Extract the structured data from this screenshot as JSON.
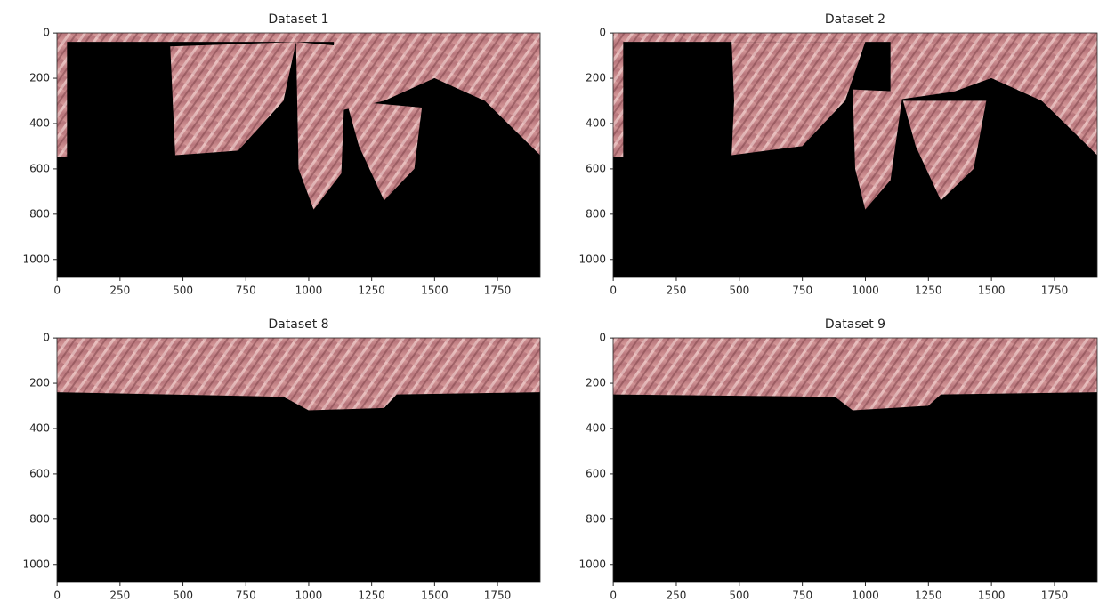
{
  "chart_data": [
    {
      "type": "image",
      "title": "Dataset 1",
      "xlim": [
        -0.5,
        1919.5
      ],
      "ylim": [
        1079.5,
        -0.5
      ],
      "xticks": [
        0,
        250,
        500,
        750,
        1000,
        1250,
        1500,
        1750
      ],
      "yticks": [
        0,
        200,
        400,
        600,
        800,
        1000
      ]
    },
    {
      "type": "image",
      "title": "Dataset 2",
      "xlim": [
        -0.5,
        1919.5
      ],
      "ylim": [
        1079.5,
        -0.5
      ],
      "xticks": [
        0,
        250,
        500,
        750,
        1000,
        1250,
        1500,
        1750
      ],
      "yticks": [
        0,
        200,
        400,
        600,
        800,
        1000
      ]
    },
    {
      "type": "image",
      "title": "Dataset 8",
      "xlim": [
        -0.5,
        1919.5
      ],
      "ylim": [
        1079.5,
        -0.5
      ],
      "xticks": [
        0,
        250,
        500,
        750,
        1000,
        1250,
        1500,
        1750
      ],
      "yticks": [
        0,
        200,
        400,
        600,
        800,
        1000
      ]
    },
    {
      "type": "image",
      "title": "Dataset 9",
      "xlim": [
        -0.5,
        1919.5
      ],
      "ylim": [
        1079.5,
        -0.5
      ],
      "xticks": [
        0,
        250,
        500,
        750,
        1000,
        1250,
        1500,
        1750
      ],
      "yticks": [
        0,
        200,
        400,
        600,
        800,
        1000
      ]
    }
  ]
}
